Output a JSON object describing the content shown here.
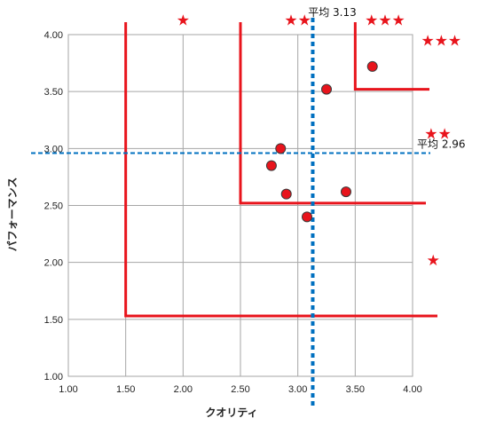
{
  "chart_data": {
    "type": "scatter",
    "xlabel": "クオリティ",
    "ylabel": "パフォーマンス",
    "xlim": [
      1.0,
      4.0
    ],
    "ylim": [
      1.0,
      4.0
    ],
    "x_ticks": [
      "1.00",
      "1.50",
      "2.00",
      "2.50",
      "3.00",
      "3.50",
      "4.00"
    ],
    "y_ticks": [
      "1.00",
      "1.50",
      "2.00",
      "2.50",
      "3.00",
      "3.50",
      "4.00"
    ],
    "grid": true,
    "points": [
      {
        "x": 3.65,
        "y": 3.72
      },
      {
        "x": 3.25,
        "y": 3.52
      },
      {
        "x": 2.85,
        "y": 3.0
      },
      {
        "x": 2.77,
        "y": 2.85
      },
      {
        "x": 2.9,
        "y": 2.6
      },
      {
        "x": 3.42,
        "y": 2.62
      },
      {
        "x": 3.08,
        "y": 2.4
      }
    ],
    "avg_x": {
      "value": 3.13,
      "label": "平均 3.13"
    },
    "avg_y": {
      "value": 2.96,
      "label": "平均 2.96"
    },
    "regions": [
      {
        "x": 1.5,
        "y": 1.53
      },
      {
        "x": 2.5,
        "y": 2.52
      },
      {
        "x": 3.5,
        "y": 3.52
      }
    ],
    "star_labels": [
      {
        "stars": "★",
        "x": 2.0,
        "y": 4.13
      },
      {
        "stars": "★★",
        "x": 3.0,
        "y": 4.13
      },
      {
        "stars": "★★★",
        "x": 3.76,
        "y": 4.13
      },
      {
        "stars": "★★★",
        "x": 4.25,
        "y": 3.95
      },
      {
        "stars": "★★",
        "x": 4.22,
        "y": 3.13
      },
      {
        "stars": "★",
        "x": 4.18,
        "y": 2.02
      }
    ],
    "colors": {
      "points": "#e8141c",
      "region_lines": "#e8141c",
      "average_lines": "#0070c0",
      "grid": "#a6a6a6"
    }
  }
}
